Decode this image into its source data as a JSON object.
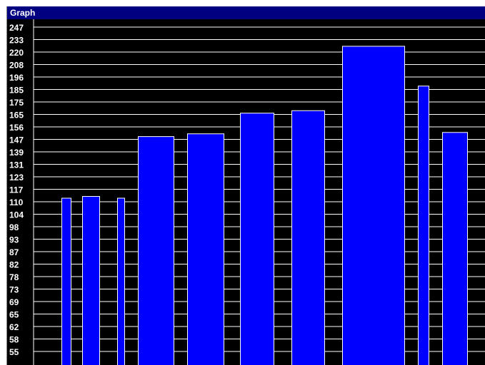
{
  "window": {
    "title": "Graph"
  },
  "chart_data": {
    "type": "bar",
    "y_ticks": [
      247,
      233,
      220,
      208,
      196,
      185,
      175,
      165,
      156,
      147,
      139,
      131,
      123,
      117,
      110,
      104,
      98,
      93,
      87,
      82,
      78,
      73,
      69,
      65,
      62,
      58,
      55
    ],
    "values": [
      112,
      113,
      112,
      149,
      151,
      166,
      168,
      226,
      188,
      152
    ],
    "grid": true,
    "colors": {
      "background": "#000000",
      "bar_fill": "#0000ff",
      "bar_stroke": "#ffffff",
      "grid": "#ffffff",
      "label": "#ffffff"
    }
  }
}
